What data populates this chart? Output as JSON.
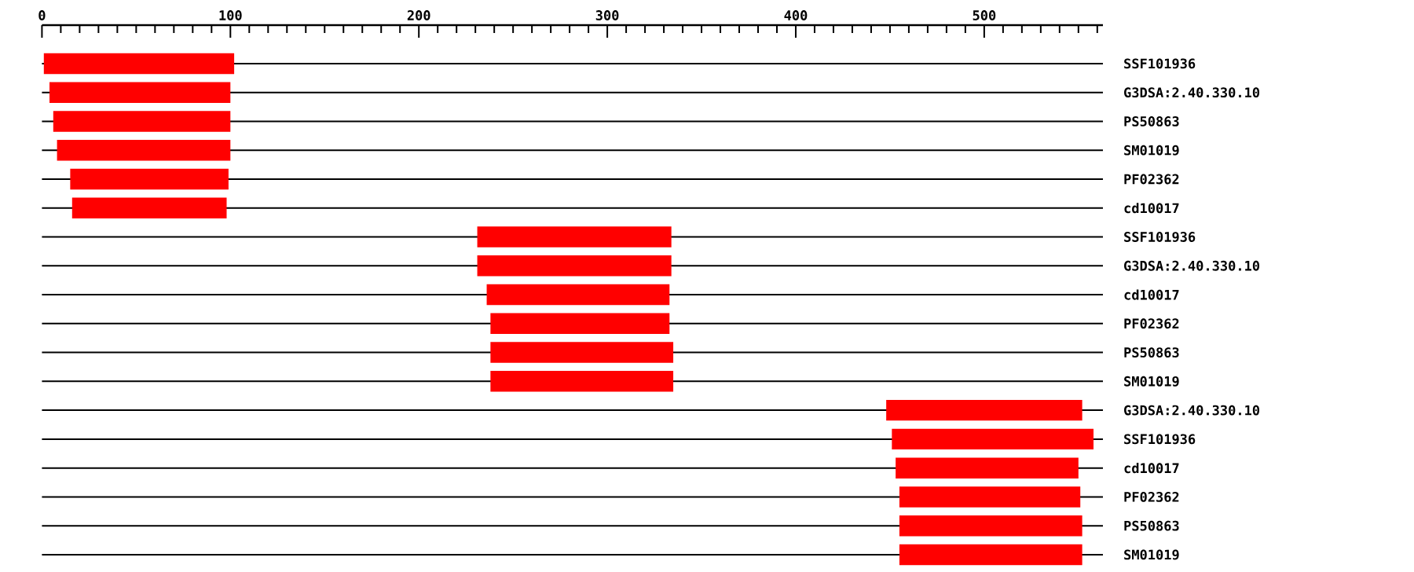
{
  "chart_data": {
    "type": "bar",
    "orientation": "horizontal",
    "color": "#ff0000",
    "grid": "y",
    "categories": [
      "SSF101936",
      "G3DSA:2.40.330.10",
      "PS50863",
      "SM01019",
      "PF02362",
      "cd10017",
      "SSF101936",
      "G3DSA:2.40.330.10",
      "cd10017",
      "PF02362",
      "PS50863",
      "SM01019",
      "G3DSA:2.40.330.10",
      "SSF101936",
      "cd10017",
      "PF02362",
      "PS50863",
      "SM01019"
    ],
    "base": [
      1,
      4,
      6,
      8,
      15,
      16,
      231,
      231,
      236,
      238,
      238,
      238,
      448,
      451,
      453,
      455,
      455,
      455
    ],
    "values": [
      101,
      96,
      94,
      92,
      84,
      82,
      103,
      103,
      97,
      95,
      97,
      97,
      104,
      107,
      97,
      96,
      97,
      97
    ],
    "xlim": [
      0,
      563
    ],
    "xticks": [
      0,
      {
        "value": 10,
        "label": null
      },
      {
        "value": 20,
        "label": null
      },
      {
        "value": 30,
        "label": null
      },
      {
        "value": 40,
        "label": null
      },
      {
        "value": 50,
        "label": null
      },
      {
        "value": 60,
        "label": null
      },
      {
        "value": 70,
        "label": null
      },
      {
        "value": 80,
        "label": null
      },
      {
        "value": 90,
        "label": null
      },
      100,
      {
        "value": 110,
        "label": null
      },
      {
        "value": 120,
        "label": null
      },
      {
        "value": 130,
        "label": null
      },
      {
        "value": 140,
        "label": null
      },
      {
        "value": 150,
        "label": null
      },
      {
        "value": 160,
        "label": null
      },
      {
        "value": 170,
        "label": null
      },
      {
        "value": 180,
        "label": null
      },
      {
        "value": 190,
        "label": null
      },
      200,
      {
        "value": 210,
        "label": null
      },
      {
        "value": 220,
        "label": null
      },
      {
        "value": 230,
        "label": null
      },
      {
        "value": 240,
        "label": null
      },
      {
        "value": 250,
        "label": null
      },
      {
        "value": 260,
        "label": null
      },
      {
        "value": 270,
        "label": null
      },
      {
        "value": 280,
        "label": null
      },
      {
        "value": 290,
        "label": null
      },
      300,
      {
        "value": 310,
        "label": null
      },
      {
        "value": 320,
        "label": null
      },
      {
        "value": 330,
        "label": null
      },
      {
        "value": 340,
        "label": null
      },
      {
        "value": 350,
        "label": null
      },
      {
        "value": 360,
        "label": null
      },
      {
        "value": 370,
        "label": null
      },
      {
        "value": 380,
        "label": null
      },
      {
        "value": 390,
        "label": null
      },
      400,
      {
        "value": 410,
        "label": null
      },
      {
        "value": 420,
        "label": null
      },
      {
        "value": 430,
        "label": null
      },
      {
        "value": 440,
        "label": null
      },
      {
        "value": 450,
        "label": null
      },
      {
        "value": 460,
        "label": null
      },
      {
        "value": 470,
        "label": null
      },
      {
        "value": 480,
        "label": null
      },
      {
        "value": 490,
        "label": null
      },
      500,
      {
        "value": 510,
        "label": null
      },
      {
        "value": 520,
        "label": null
      },
      {
        "value": 530,
        "label": null
      },
      {
        "value": 540,
        "label": null
      },
      {
        "value": 550,
        "label": null
      },
      {
        "value": 560,
        "label": null
      }
    ]
  }
}
